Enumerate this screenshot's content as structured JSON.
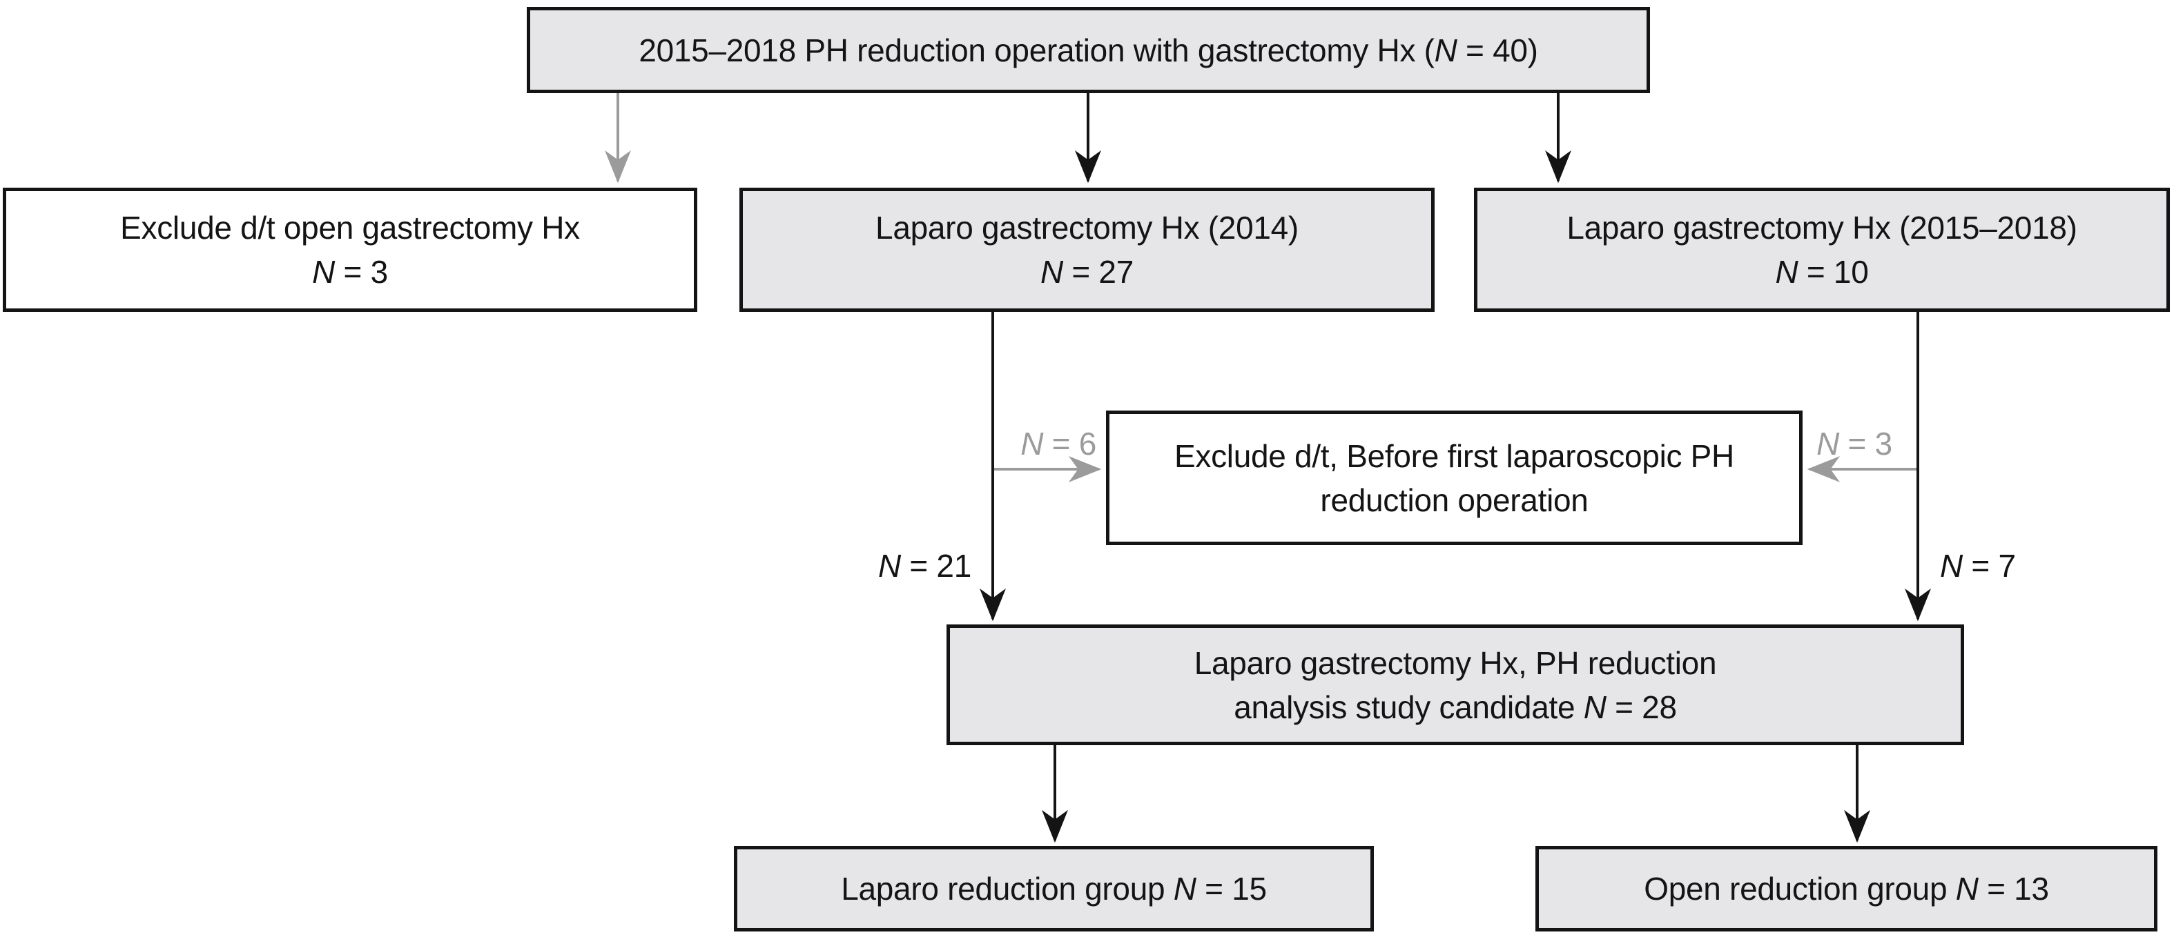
{
  "diagram": {
    "title_node": "2015–2018 PH reduction operation with gastrectomy Hx (N = 40)",
    "nodes": {
      "source": {
        "line1": "2015–2018 PH reduction operation with gastrectomy Hx (N = 40)"
      },
      "exclude_open": {
        "line1": "Exclude d/t open gastrectomy Hx",
        "line2": "N = 3"
      },
      "laparo_2014": {
        "line1": "Laparo gastrectomy Hx (2014)",
        "line2": "N = 27"
      },
      "laparo_2015_2018": {
        "line1": "Laparo gastrectomy Hx (2015–2018)",
        "line2": "N = 10"
      },
      "exclude_before_first": {
        "line1": "Exclude d/t, Before first laparoscopic PH",
        "line2": "reduction operation"
      },
      "candidate": {
        "line1": "Laparo gastrectomy Hx, PH reduction",
        "line2": "analysis study candidate N = 28"
      },
      "laparo_group": {
        "line1": "Laparo reduction group N = 15"
      },
      "open_group": {
        "line1": "Open reduction group N = 13"
      }
    },
    "edges": [
      {
        "from": "source",
        "to": "exclude_open",
        "color": "gray",
        "label": ""
      },
      {
        "from": "source",
        "to": "laparo_2014",
        "color": "black",
        "label": ""
      },
      {
        "from": "source",
        "to": "laparo_2015_2018",
        "color": "black",
        "label": ""
      },
      {
        "from": "laparo_2014",
        "to": "candidate",
        "color": "black",
        "label": "N = 21"
      },
      {
        "from": "laparo_2015_2018",
        "to": "candidate",
        "color": "black",
        "label": "N = 7"
      },
      {
        "from": "laparo_2014",
        "to": "exclude_before_first",
        "color": "gray",
        "label": "N = 6"
      },
      {
        "from": "laparo_2015_2018",
        "to": "exclude_before_first",
        "color": "gray",
        "label": "N = 3"
      },
      {
        "from": "candidate",
        "to": "laparo_group",
        "color": "black",
        "label": ""
      },
      {
        "from": "candidate",
        "to": "open_group",
        "color": "black",
        "label": ""
      }
    ],
    "colors": {
      "node_fill": "#e6e6e8",
      "node_border": "#141414",
      "white_fill": "#ffffff",
      "black_arrow": "#141414",
      "gray_arrow": "#9b9b9b",
      "gray_label": "#9b9b9b",
      "text": "#141414",
      "bg": "#ffffff"
    }
  }
}
